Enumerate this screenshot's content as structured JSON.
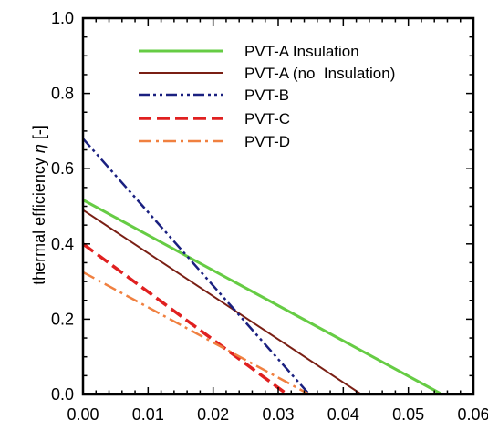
{
  "chart_data": {
    "type": "line",
    "title": "",
    "xlabel": "",
    "ylabel": "thermal efficiency",
    "ylabel_symbol": "η",
    "ylabel_unit": "[-]",
    "xlim": [
      0.0,
      0.06
    ],
    "ylim": [
      0.0,
      1.0
    ],
    "x_ticks": [
      0.0,
      0.01,
      0.02,
      0.03,
      0.04,
      0.05,
      0.06
    ],
    "x_tick_labels": [
      "0.00",
      "0.01",
      "0.02",
      "0.03",
      "0.04",
      "0.05",
      "0.06"
    ],
    "y_ticks": [
      0.0,
      0.2,
      0.4,
      0.6,
      0.8,
      1.0
    ],
    "y_tick_labels": [
      "0.0",
      "0.2",
      "0.4",
      "0.6",
      "0.8",
      "1.0"
    ],
    "grid": false,
    "legend_position": "top-right",
    "series": [
      {
        "name": "PVT-A Insulation",
        "color": "#66cc44",
        "style": "solid",
        "x": [
          0.0,
          0.0552
        ],
        "y": [
          0.517,
          0.0
        ]
      },
      {
        "name": "PVT-A (no  Insulation)",
        "color": "#7a1f14",
        "style": "solid",
        "x": [
          0.0,
          0.0428
        ],
        "y": [
          0.49,
          0.0
        ]
      },
      {
        "name": "PVT-B",
        "color": "#1a2080",
        "style": "dash-dot-dot",
        "x": [
          0.0,
          0.0348
        ],
        "y": [
          0.68,
          0.0
        ]
      },
      {
        "name": "PVT-C",
        "color": "#e02020",
        "style": "dashed",
        "x": [
          0.0,
          0.0314
        ],
        "y": [
          0.4,
          0.0
        ]
      },
      {
        "name": "PVT-D",
        "color": "#f08040",
        "style": "dash-dot",
        "x": [
          0.0,
          0.0348
        ],
        "y": [
          0.325,
          0.0
        ]
      }
    ]
  }
}
